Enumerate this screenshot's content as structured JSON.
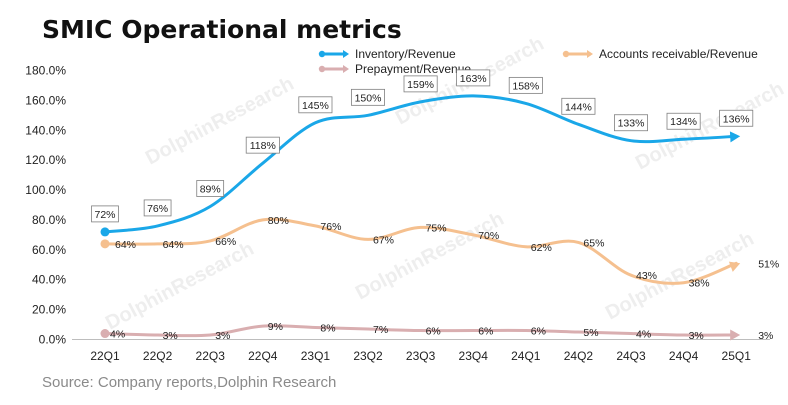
{
  "chart_data": {
    "type": "line",
    "title": "SMIC Operational metrics",
    "source": "Source: Company reports,Dolphin Research",
    "categories": [
      "22Q1",
      "22Q2",
      "22Q3",
      "22Q4",
      "23Q1",
      "23Q2",
      "23Q3",
      "23Q4",
      "24Q1",
      "24Q2",
      "24Q3",
      "24Q4",
      "25Q1"
    ],
    "ylim": [
      0,
      180
    ],
    "yticks": [
      "0.0%",
      "20.0%",
      "40.0%",
      "60.0%",
      "80.0%",
      "100.0%",
      "120.0%",
      "140.0%",
      "160.0%",
      "180.0%"
    ],
    "legend_position": "top",
    "series": [
      {
        "name": "Inventory/Revenue",
        "color": "#1aa7e8",
        "values": [
          72,
          76,
          89,
          118,
          145,
          150,
          159,
          163,
          158,
          144,
          133,
          134,
          136
        ],
        "labels": [
          "72%",
          "76%",
          "89%",
          "118%",
          "145%",
          "150%",
          "159%",
          "163%",
          "158%",
          "144%",
          "133%",
          "134%",
          "136%"
        ]
      },
      {
        "name": "Accounts receivable/Revenue",
        "color": "#f5c08f",
        "values": [
          64,
          64,
          66,
          80,
          76,
          67,
          75,
          70,
          62,
          65,
          43,
          38,
          51
        ],
        "labels": [
          "64%",
          "64%",
          "66%",
          "80%",
          "76%",
          "67%",
          "75%",
          "70%",
          "62%",
          "65%",
          "43%",
          "38%",
          "51%"
        ]
      },
      {
        "name": "Prepayment/Revenue",
        "color": "#d9aeb0",
        "values": [
          4,
          3,
          3,
          9,
          8,
          7,
          6,
          6,
          6,
          5,
          4,
          3,
          3
        ],
        "labels": [
          "4%",
          "3%",
          "3%",
          "9%",
          "8%",
          "7%",
          "6%",
          "6%",
          "6%",
          "5%",
          "4%",
          "3%",
          "3%"
        ]
      }
    ],
    "watermark": "DolphinResearch"
  }
}
